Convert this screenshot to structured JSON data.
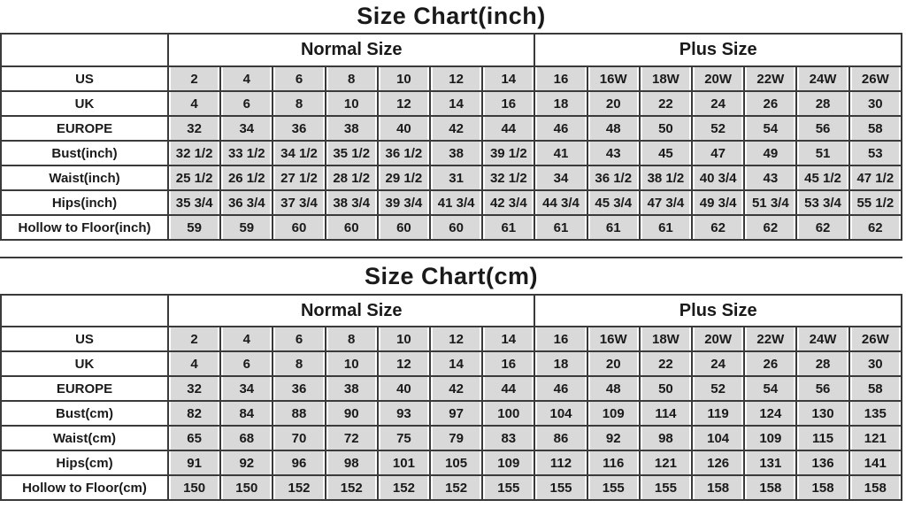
{
  "colors": {
    "cell_background": "#d9d9d9",
    "label_background": "#ffffff",
    "border": "#3a3a3a",
    "text": "#1a1a1a"
  },
  "chart_data": [
    {
      "type": "table",
      "title": "Size Chart(inch)",
      "column_groups": [
        {
          "label": "",
          "span": 1
        },
        {
          "label": "Normal Size",
          "span": 7
        },
        {
          "label": "Plus Size",
          "span": 7
        }
      ],
      "rows": [
        {
          "label": "US",
          "values": [
            "2",
            "4",
            "6",
            "8",
            "10",
            "12",
            "14",
            "16",
            "16W",
            "18W",
            "20W",
            "22W",
            "24W",
            "26W"
          ]
        },
        {
          "label": "UK",
          "values": [
            "4",
            "6",
            "8",
            "10",
            "12",
            "14",
            "16",
            "18",
            "20",
            "22",
            "24",
            "26",
            "28",
            "30"
          ]
        },
        {
          "label": "EUROPE",
          "values": [
            "32",
            "34",
            "36",
            "38",
            "40",
            "42",
            "44",
            "46",
            "48",
            "50",
            "52",
            "54",
            "56",
            "58"
          ]
        },
        {
          "label": "Bust(inch)",
          "values": [
            "32 1/2",
            "33 1/2",
            "34 1/2",
            "35 1/2",
            "36 1/2",
            "38",
            "39 1/2",
            "41",
            "43",
            "45",
            "47",
            "49",
            "51",
            "53"
          ]
        },
        {
          "label": "Waist(inch)",
          "values": [
            "25 1/2",
            "26 1/2",
            "27 1/2",
            "28 1/2",
            "29 1/2",
            "31",
            "32 1/2",
            "34",
            "36 1/2",
            "38 1/2",
            "40 3/4",
            "43",
            "45 1/2",
            "47 1/2"
          ]
        },
        {
          "label": "Hips(inch)",
          "values": [
            "35 3/4",
            "36 3/4",
            "37 3/4",
            "38 3/4",
            "39 3/4",
            "41 3/4",
            "42 3/4",
            "44 3/4",
            "45 3/4",
            "47 3/4",
            "49 3/4",
            "51 3/4",
            "53 3/4",
            "55 1/2"
          ]
        },
        {
          "label": "Hollow to Floor(inch)",
          "values": [
            "59",
            "59",
            "60",
            "60",
            "60",
            "60",
            "61",
            "61",
            "61",
            "61",
            "62",
            "62",
            "62",
            "62"
          ]
        }
      ]
    },
    {
      "type": "table",
      "title": "Size Chart(cm)",
      "column_groups": [
        {
          "label": "",
          "span": 1
        },
        {
          "label": "Normal Size",
          "span": 7
        },
        {
          "label": "Plus Size",
          "span": 7
        }
      ],
      "rows": [
        {
          "label": "US",
          "values": [
            "2",
            "4",
            "6",
            "8",
            "10",
            "12",
            "14",
            "16",
            "16W",
            "18W",
            "20W",
            "22W",
            "24W",
            "26W"
          ]
        },
        {
          "label": "UK",
          "values": [
            "4",
            "6",
            "8",
            "10",
            "12",
            "14",
            "16",
            "18",
            "20",
            "22",
            "24",
            "26",
            "28",
            "30"
          ]
        },
        {
          "label": "EUROPE",
          "values": [
            "32",
            "34",
            "36",
            "38",
            "40",
            "42",
            "44",
            "46",
            "48",
            "50",
            "52",
            "54",
            "56",
            "58"
          ]
        },
        {
          "label": "Bust(cm)",
          "values": [
            "82",
            "84",
            "88",
            "90",
            "93",
            "97",
            "100",
            "104",
            "109",
            "114",
            "119",
            "124",
            "130",
            "135"
          ]
        },
        {
          "label": "Waist(cm)",
          "values": [
            "65",
            "68",
            "70",
            "72",
            "75",
            "79",
            "83",
            "86",
            "92",
            "98",
            "104",
            "109",
            "115",
            "121"
          ]
        },
        {
          "label": "Hips(cm)",
          "values": [
            "91",
            "92",
            "96",
            "98",
            "101",
            "105",
            "109",
            "112",
            "116",
            "121",
            "126",
            "131",
            "136",
            "141"
          ]
        },
        {
          "label": "Hollow to Floor(cm)",
          "values": [
            "150",
            "150",
            "152",
            "152",
            "152",
            "152",
            "155",
            "155",
            "155",
            "155",
            "158",
            "158",
            "158",
            "158"
          ]
        }
      ]
    }
  ]
}
